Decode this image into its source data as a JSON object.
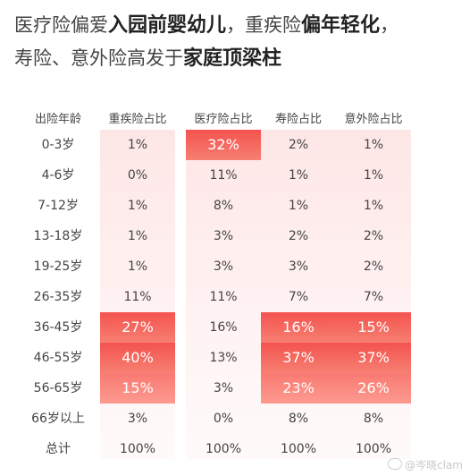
{
  "headline": {
    "line1_pre": "医疗险偏爱",
    "line1_hl": "入园前婴幼儿",
    "line1_mid": "，重疾险",
    "line1_hl2": "偏年轻化",
    "line1_end": "，",
    "line2_pre": "寿险、意外险高发于",
    "line2_hl": "家庭顶梁柱"
  },
  "watermark": "@岑晓clam",
  "chart_data": {
    "type": "table",
    "columns": [
      "出险年龄",
      "重疾险占比",
      "医疗险占比",
      "寿险占比",
      "意外险占比"
    ],
    "rows": [
      [
        "0-3岁",
        "1%",
        "32%",
        "2%",
        "1%"
      ],
      [
        "4-6岁",
        "0%",
        "11%",
        "1%",
        "1%"
      ],
      [
        "7-12岁",
        "1%",
        "8%",
        "1%",
        "1%"
      ],
      [
        "13-18岁",
        "1%",
        "3%",
        "2%",
        "2%"
      ],
      [
        "19-25岁",
        "1%",
        "3%",
        "3%",
        "2%"
      ],
      [
        "26-35岁",
        "11%",
        "11%",
        "7%",
        "7%"
      ],
      [
        "36-45岁",
        "27%",
        "16%",
        "16%",
        "15%"
      ],
      [
        "46-55岁",
        "40%",
        "13%",
        "37%",
        "37%"
      ],
      [
        "56-65岁",
        "15%",
        "3%",
        "23%",
        "26%"
      ],
      [
        "66岁以上",
        "3%",
        "0%",
        "8%",
        "8%"
      ],
      [
        "总计",
        "100%",
        "100%",
        "100%",
        "100%"
      ]
    ],
    "highlights": [
      {
        "row": 0,
        "col": 2,
        "style": "strong"
      },
      {
        "row": 6,
        "col": 1,
        "style": "strong"
      },
      {
        "row": 7,
        "col": 1,
        "style": "strong"
      },
      {
        "row": 8,
        "col": 1,
        "style": "soft"
      },
      {
        "row": 6,
        "col": 3,
        "style": "strong"
      },
      {
        "row": 7,
        "col": 3,
        "style": "strong"
      },
      {
        "row": 8,
        "col": 3,
        "style": "soft"
      },
      {
        "row": 6,
        "col": 4,
        "style": "strong"
      },
      {
        "row": 7,
        "col": 4,
        "style": "strong"
      },
      {
        "row": 8,
        "col": 4,
        "style": "soft"
      }
    ]
  }
}
